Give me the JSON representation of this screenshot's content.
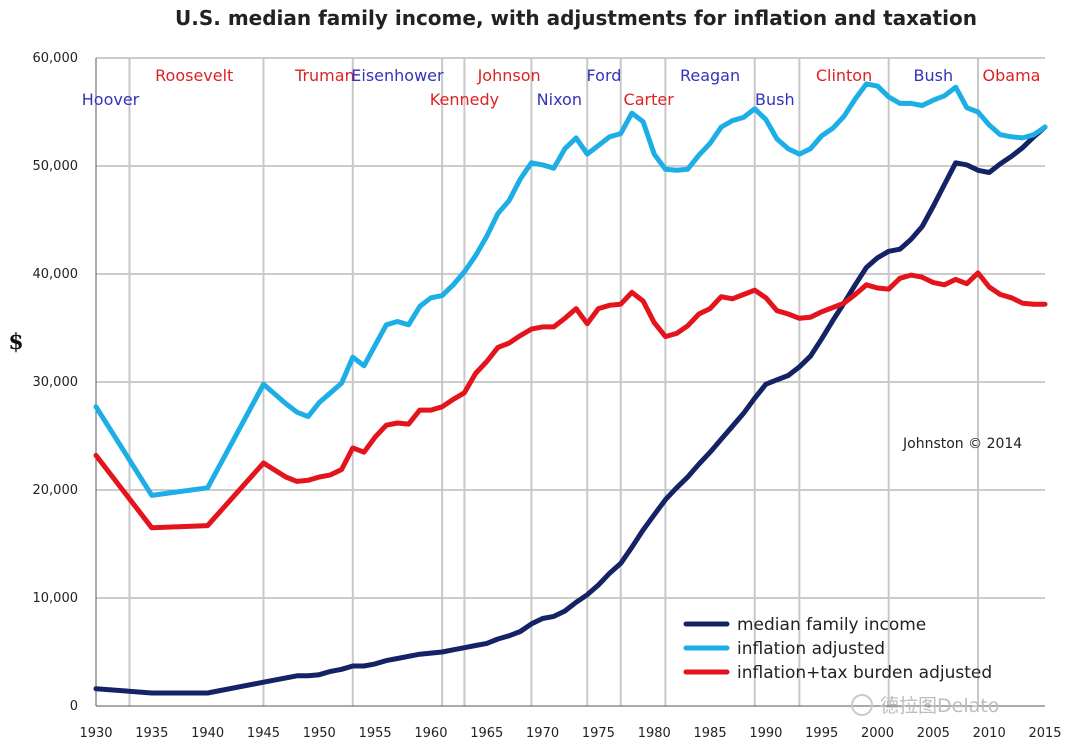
{
  "chart_data": {
    "type": "line",
    "title": "U.S. median family income, with adjustments for inflation and taxation",
    "ylabel": "$",
    "xlabel": "",
    "xlim": [
      1930,
      2015
    ],
    "ylim": [
      0,
      60000
    ],
    "x_ticks": [
      "1930",
      "1935",
      "1940",
      "1945",
      "1950",
      "1955",
      "1960",
      "1965",
      "1970",
      "1975",
      "1980",
      "1985",
      "1990",
      "1995",
      "2000",
      "2005",
      "2010",
      "2015"
    ],
    "y_ticks": [
      "0",
      "10,000",
      "20,000",
      "30,000",
      "40,000",
      "50,000",
      "60,000"
    ],
    "grid": "horizontal and vertical (presidential term boundaries)",
    "term_boundaries": [
      1933,
      1945,
      1953,
      1961,
      1963,
      1969,
      1974,
      1977,
      1981,
      1989,
      1993,
      2001,
      2009
    ],
    "presidents": [
      {
        "name": "Hoover",
        "party_color": "#3333bb"
      },
      {
        "name": "Roosevelt",
        "party_color": "#dd2222"
      },
      {
        "name": "Truman",
        "party_color": "#dd2222"
      },
      {
        "name": "Eisenhower",
        "party_color": "#3333bb"
      },
      {
        "name": "Kennedy",
        "party_color": "#dd2222"
      },
      {
        "name": "Johnson",
        "party_color": "#dd2222"
      },
      {
        "name": "Nixon",
        "party_color": "#3333bb"
      },
      {
        "name": "Ford",
        "party_color": "#3333bb"
      },
      {
        "name": "Carter",
        "party_color": "#dd2222"
      },
      {
        "name": "Reagan",
        "party_color": "#3333bb"
      },
      {
        "name": "Bush",
        "party_color": "#3333bb"
      },
      {
        "name": "Clinton",
        "party_color": "#dd2222"
      },
      {
        "name": "Bush",
        "party_color": "#3333bb"
      },
      {
        "name": "Obama",
        "party_color": "#dd2222"
      }
    ],
    "legend_position": "bottom-right",
    "annotation": "Johnston © 2014",
    "watermark": "德拉图Delato",
    "series": [
      {
        "name": "median family income",
        "color": "#142366",
        "x": [
          1930,
          1935,
          1940,
          1945,
          1947,
          1948,
          1949,
          1950,
          1951,
          1952,
          1953,
          1954,
          1955,
          1956,
          1957,
          1958,
          1959,
          1960,
          1961,
          1962,
          1963,
          1964,
          1965,
          1966,
          1967,
          1968,
          1969,
          1970,
          1971,
          1972,
          1973,
          1974,
          1975,
          1976,
          1977,
          1978,
          1979,
          1980,
          1981,
          1982,
          1983,
          1984,
          1985,
          1986,
          1987,
          1988,
          1989,
          1990,
          1991,
          1992,
          1993,
          1994,
          1995,
          1996,
          1997,
          1998,
          1999,
          2000,
          2001,
          2002,
          2003,
          2004,
          2005,
          2006,
          2007,
          2008,
          2009,
          2010,
          2011,
          2012,
          2013,
          2014,
          2015
        ],
        "values": [
          1600,
          1200,
          1200,
          2200,
          2600,
          2800,
          2800,
          2900,
          3200,
          3400,
          3700,
          3700,
          3900,
          4200,
          4400,
          4600,
          4800,
          4900,
          5000,
          5200,
          5400,
          5600,
          5800,
          6200,
          6500,
          6900,
          7600,
          8100,
          8300,
          8800,
          9600,
          10300,
          11200,
          12300,
          13200,
          14700,
          16300,
          17700,
          19100,
          20200,
          21200,
          22400,
          23500,
          24700,
          25900,
          27100,
          28500,
          29800,
          30200,
          30600,
          31400,
          32400,
          34000,
          35700,
          37300,
          39000,
          40600,
          41500,
          42100,
          42300,
          43200,
          44400,
          46300,
          48300,
          50300,
          50100,
          49600,
          49400,
          50200,
          50900,
          51700,
          52700,
          53600
        ]
      },
      {
        "name": "inflation adjusted",
        "color": "#1eaee6",
        "x": [
          1930,
          1935,
          1940,
          1945,
          1947,
          1948,
          1949,
          1950,
          1951,
          1952,
          1953,
          1954,
          1955,
          1956,
          1957,
          1958,
          1959,
          1960,
          1961,
          1962,
          1963,
          1964,
          1965,
          1966,
          1967,
          1968,
          1969,
          1970,
          1971,
          1972,
          1973,
          1974,
          1975,
          1976,
          1977,
          1978,
          1979,
          1980,
          1981,
          1982,
          1983,
          1984,
          1985,
          1986,
          1987,
          1988,
          1989,
          1990,
          1991,
          1992,
          1993,
          1994,
          1995,
          1996,
          1997,
          1998,
          1999,
          2000,
          2001,
          2002,
          2003,
          2004,
          2005,
          2006,
          2007,
          2008,
          2009,
          2010,
          2011,
          2012,
          2013,
          2014,
          2015
        ],
        "values": [
          27700,
          19500,
          20200,
          29800,
          28000,
          27200,
          26800,
          28100,
          29000,
          29900,
          32300,
          31500,
          33400,
          35300,
          35600,
          35300,
          37000,
          37800,
          38000,
          39000,
          40200,
          41700,
          43500,
          45600,
          46800,
          48800,
          50300,
          50100,
          49800,
          51600,
          52600,
          51100,
          51900,
          52700,
          53000,
          54900,
          54100,
          51100,
          49700,
          49600,
          49700,
          51000,
          52100,
          53600,
          54200,
          54500,
          55300,
          54300,
          52500,
          51600,
          51100,
          51600,
          52800,
          53500,
          54600,
          56200,
          57600,
          57400,
          56400,
          55800,
          55800,
          55600,
          56100,
          56500,
          57300,
          55400,
          55000,
          53800,
          52900,
          52700,
          52600,
          52900,
          53600
        ]
      },
      {
        "name": "inflation+tax burden adjusted",
        "color": "#e3141c",
        "x": [
          1930,
          1935,
          1940,
          1945,
          1947,
          1948,
          1949,
          1950,
          1951,
          1952,
          1953,
          1954,
          1955,
          1956,
          1957,
          1958,
          1959,
          1960,
          1961,
          1962,
          1963,
          1964,
          1965,
          1966,
          1967,
          1968,
          1969,
          1970,
          1971,
          1972,
          1973,
          1974,
          1975,
          1976,
          1977,
          1978,
          1979,
          1980,
          1981,
          1982,
          1983,
          1984,
          1985,
          1986,
          1987,
          1988,
          1989,
          1990,
          1991,
          1992,
          1993,
          1994,
          1995,
          1996,
          1997,
          1998,
          1999,
          2000,
          2001,
          2002,
          2003,
          2004,
          2005,
          2006,
          2007,
          2008,
          2009,
          2010,
          2011,
          2012,
          2013,
          2014,
          2015
        ],
        "values": [
          23200,
          16500,
          16700,
          22500,
          21200,
          20800,
          20900,
          21200,
          21400,
          21900,
          23900,
          23500,
          24900,
          26000,
          26200,
          26100,
          27400,
          27400,
          27700,
          28400,
          29000,
          30800,
          31900,
          33200,
          33600,
          34300,
          34900,
          35100,
          35100,
          35900,
          36800,
          35400,
          36800,
          37100,
          37200,
          38300,
          37500,
          35500,
          34200,
          34500,
          35200,
          36300,
          36800,
          37900,
          37700,
          38100,
          38500,
          37800,
          36600,
          36300,
          35900,
          36000,
          36500,
          36900,
          37300,
          38100,
          39000,
          38700,
          38600,
          39600,
          39900,
          39700,
          39200,
          39000,
          39500,
          39100,
          40100,
          38800,
          38100,
          37800,
          37300,
          37200,
          37200
        ]
      }
    ]
  }
}
